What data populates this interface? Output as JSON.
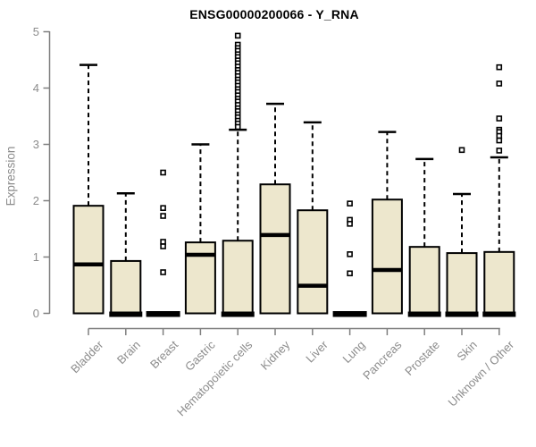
{
  "chart_data": {
    "type": "box",
    "title": "ENSG00000200066 - Y_RNA",
    "ylabel": "Expression",
    "xlabel": "",
    "ylim": [
      0,
      5
    ],
    "yticks": [
      0,
      1,
      2,
      3,
      4,
      5
    ],
    "grid": false,
    "legend": "none",
    "categories": [
      "Bladder",
      "Brain",
      "Breast",
      "Gastric",
      "Hematopoietic cells",
      "Kidney",
      "Liver",
      "Lung",
      "Pancreas",
      "Prostate",
      "Skin",
      "Unknown / Other"
    ],
    "boxes": [
      {
        "category": "Bladder",
        "min": 0,
        "q1": 0,
        "median": 0.87,
        "q3": 1.91,
        "max": 4.41,
        "outliers": []
      },
      {
        "category": "Brain",
        "min": 0,
        "q1": 0,
        "median": 0.03,
        "q3": 0.93,
        "max": 2.13,
        "outliers": []
      },
      {
        "category": "Breast",
        "min": 0,
        "q1": 0,
        "median": 0.02,
        "q3": 0.02,
        "max": 0.02,
        "outliers": [
          2.5,
          1.87,
          1.73,
          1.27,
          1.19,
          0.73
        ]
      },
      {
        "category": "Gastric",
        "min": 0,
        "q1": 0,
        "median": 1.04,
        "q3": 1.26,
        "max": 3.0,
        "outliers": []
      },
      {
        "category": "Hematopoietic cells",
        "min": 0,
        "q1": 0,
        "median": 0.03,
        "q3": 1.29,
        "max": 3.26,
        "outliers": [
          4.93,
          4.77,
          4.71,
          4.66,
          4.6,
          4.55,
          4.49,
          4.44,
          4.38,
          4.32,
          4.27,
          4.21,
          4.15,
          4.1,
          4.04,
          3.98,
          3.93,
          3.87,
          3.81,
          3.76,
          3.7,
          3.64,
          3.59,
          3.53,
          3.48,
          3.42,
          3.37,
          3.31
        ]
      },
      {
        "category": "Kidney",
        "min": 0,
        "q1": 0,
        "median": 1.39,
        "q3": 2.29,
        "max": 3.72,
        "outliers": []
      },
      {
        "category": "Liver",
        "min": 0,
        "q1": 0,
        "median": 0.49,
        "q3": 1.83,
        "max": 3.39,
        "outliers": []
      },
      {
        "category": "Lung",
        "min": 0,
        "q1": 0,
        "median": 0.02,
        "q3": 0.02,
        "max": 0.02,
        "outliers": [
          1.95,
          1.66,
          1.59,
          1.05,
          0.71
        ]
      },
      {
        "category": "Pancreas",
        "min": 0,
        "q1": 0,
        "median": 0.77,
        "q3": 2.02,
        "max": 3.22,
        "outliers": []
      },
      {
        "category": "Prostate",
        "min": 0,
        "q1": 0,
        "median": 0.03,
        "q3": 1.18,
        "max": 2.74,
        "outliers": []
      },
      {
        "category": "Skin",
        "min": 0,
        "q1": 0,
        "median": 0.03,
        "q3": 1.07,
        "max": 2.12,
        "outliers": [
          2.9
        ]
      },
      {
        "category": "Unknown / Other",
        "min": 0,
        "q1": 0,
        "median": 0.03,
        "q3": 1.09,
        "max": 2.77,
        "outliers": [
          4.37,
          4.08,
          3.46,
          3.26,
          3.22,
          3.15,
          3.07,
          2.89
        ]
      }
    ],
    "colors": {
      "box_fill": "#ede7cd",
      "box_border": "#000000",
      "median": "#000000",
      "whisker": "#000000",
      "outlier_fill": "#ffffff",
      "axis": "#7f7f7f",
      "tick_label": "#8c8c8c",
      "title": "#000000",
      "background": "#ffffff"
    }
  }
}
